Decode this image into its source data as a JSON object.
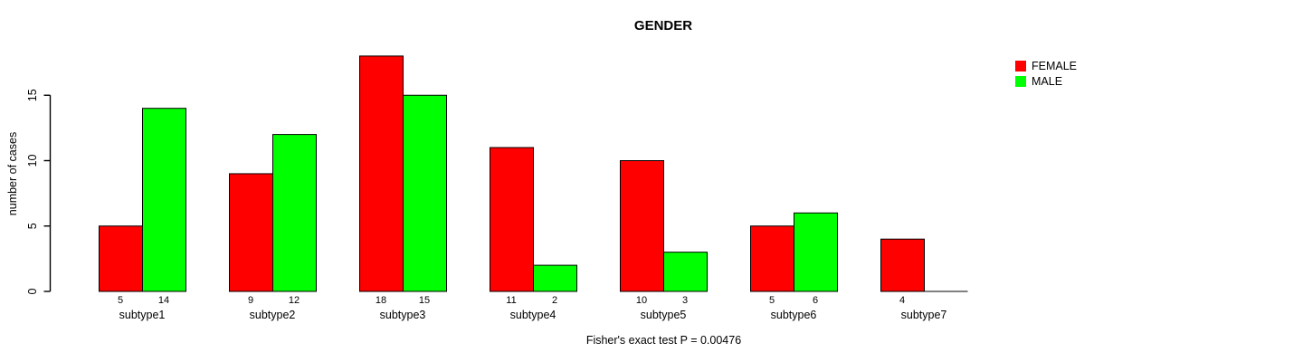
{
  "chart_data": {
    "type": "bar",
    "title": "GENDER",
    "ylabel": "number of cases",
    "xlabel": "",
    "caption": "Fisher's exact test P = 0.00476",
    "categories": [
      "subtype1",
      "subtype2",
      "subtype3",
      "subtype4",
      "subtype5",
      "subtype6",
      "subtype7"
    ],
    "series": [
      {
        "name": "FEMALE",
        "color": "#FF0000",
        "values": [
          5,
          9,
          18,
          11,
          10,
          5,
          4
        ],
        "bar_labels": [
          "5",
          "9",
          "18",
          "11",
          "10",
          "5",
          "4"
        ]
      },
      {
        "name": "MALE",
        "color": "#00FF00",
        "values": [
          14,
          12,
          15,
          2,
          3,
          6,
          0
        ],
        "bar_labels": [
          "14",
          "12",
          "15",
          "2",
          "3",
          "6",
          ""
        ]
      }
    ],
    "yticks": [
      0,
      5,
      10,
      15
    ],
    "ylim": [
      0,
      18
    ],
    "grid": false,
    "legend_position": "top-right",
    "bar_border_color": "#000000",
    "axis_color": "#000000"
  }
}
